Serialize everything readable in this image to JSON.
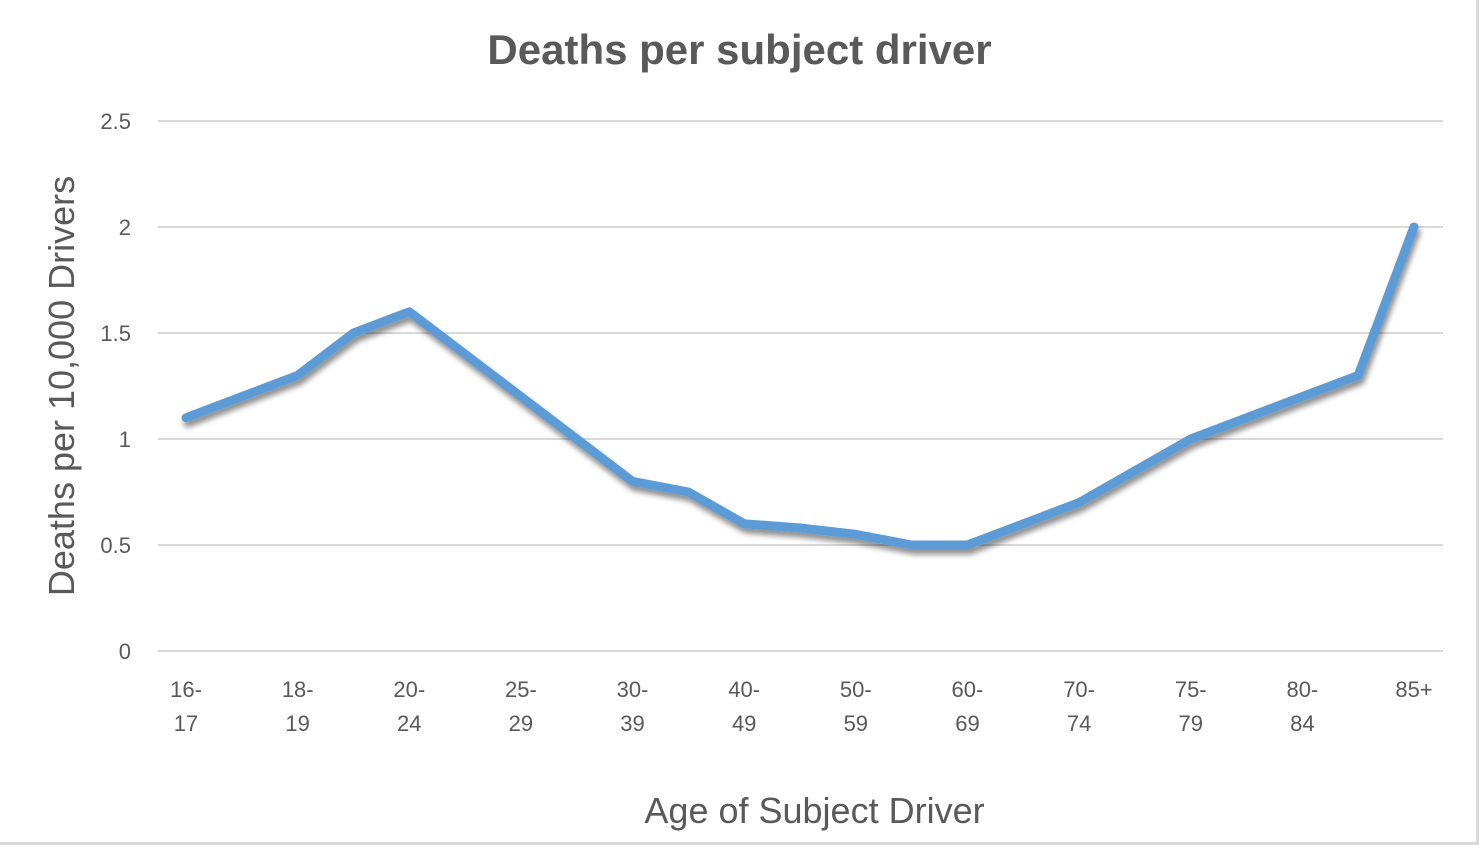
{
  "chart_data": {
    "type": "line",
    "title": "Deaths per subject driver",
    "xlabel": "Age of Subject Driver",
    "ylabel": "Deaths per 10,000 Drivers",
    "ylim": [
      0,
      2.5
    ],
    "yticks": [
      "0",
      "0.5",
      "1",
      "1.5",
      "2",
      "2.5"
    ],
    "grid": true,
    "legend": "none",
    "categories": [
      "16-17",
      "",
      "18-19",
      "",
      "20-24",
      "",
      "25-29",
      "",
      "30-39",
      "",
      "40-49",
      "",
      "50-59",
      "",
      "60-69",
      "",
      "70-74",
      "",
      "75-79",
      "",
      "80-84",
      "",
      "85+"
    ],
    "x_tick_labels": [
      {
        "line1": "16-",
        "line2": "17"
      },
      {
        "line1": "18-",
        "line2": "19"
      },
      {
        "line1": "20-",
        "line2": "24"
      },
      {
        "line1": "25-",
        "line2": "29"
      },
      {
        "line1": "30-",
        "line2": "39"
      },
      {
        "line1": "40-",
        "line2": "49"
      },
      {
        "line1": "50-",
        "line2": "59"
      },
      {
        "line1": "60-",
        "line2": "69"
      },
      {
        "line1": "70-",
        "line2": "74"
      },
      {
        "line1": "75-",
        "line2": "79"
      },
      {
        "line1": "80-",
        "line2": "84"
      },
      {
        "line1": "85+",
        "line2": ""
      }
    ],
    "series": [
      {
        "name": "Deaths per 10,000 Drivers",
        "color": "#5b9bd5",
        "values": [
          1.1,
          1.2,
          1.3,
          1.5,
          1.6,
          1.4,
          1.2,
          1.0,
          0.8,
          0.75,
          0.6,
          0.58,
          0.55,
          0.5,
          0.5,
          0.6,
          0.7,
          0.85,
          1.0,
          1.1,
          1.2,
          1.3,
          2.0
        ]
      }
    ]
  },
  "colors": {
    "line": "#5b9bd5",
    "grid": "#d9d9d9",
    "text": "#595959"
  }
}
